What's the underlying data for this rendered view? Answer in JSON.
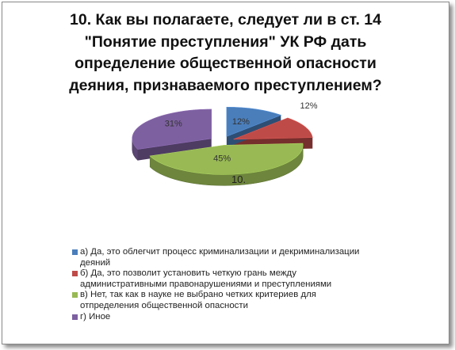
{
  "chart_data": {
    "type": "pie",
    "style": "3d-exploded",
    "title_lines": [
      "10. Как вы полагаете, следует ли в ст. 14",
      "\"Понятие преступления\" УК РФ дать",
      "определение общественной опасности",
      "деяния, признаваемого преступлением?"
    ],
    "slices": [
      {
        "key": "a",
        "value": 12,
        "label": "12%",
        "color": "#4a7ebb",
        "legend_lines": [
          "а) Да, это облегчит процесс криминализации и декриминализации",
          "деяний"
        ]
      },
      {
        "key": "b",
        "value": 12,
        "label": "12%",
        "color": "#be4b48",
        "legend_lines": [
          "б) Да, это позволит установить четкую грань между",
          "административными правонарушениями и преступлениями"
        ]
      },
      {
        "key": "c",
        "value": 45,
        "label": "45%",
        "color": "#98b954",
        "legend_lines": [
          "в) Нет, так как в науке не выбрано четких критериев для",
          "отпределения  общественной опасности"
        ]
      },
      {
        "key": "d",
        "value": 31,
        "label": "31%",
        "color": "#7d60a0",
        "legend_lines": [
          "г) Иное"
        ]
      }
    ],
    "overlay_text": "10.",
    "legend_position": "bottom"
  }
}
